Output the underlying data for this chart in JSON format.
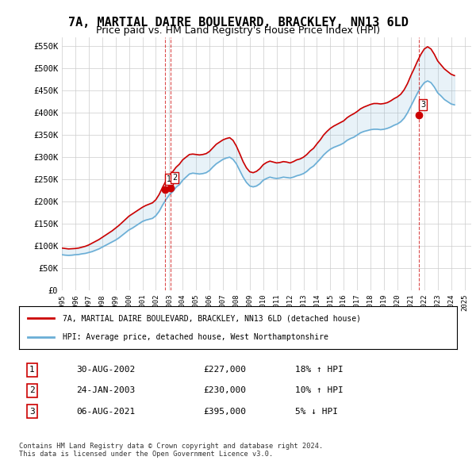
{
  "title": "7A, MARTIAL DAIRE BOULEVARD, BRACKLEY, NN13 6LD",
  "subtitle": "Price paid vs. HM Land Registry's House Price Index (HPI)",
  "title_fontsize": 11,
  "subtitle_fontsize": 9,
  "ylim": [
    0,
    570000
  ],
  "yticks": [
    0,
    50000,
    100000,
    150000,
    200000,
    250000,
    300000,
    350000,
    400000,
    450000,
    500000,
    550000
  ],
  "ytick_labels": [
    "£0",
    "£50K",
    "£100K",
    "£150K",
    "£200K",
    "£250K",
    "£300K",
    "£350K",
    "£400K",
    "£450K",
    "£500K",
    "£550K"
  ],
  "xtick_years": [
    "1995",
    "1996",
    "1997",
    "1998",
    "1999",
    "2000",
    "2001",
    "2002",
    "2003",
    "2004",
    "2005",
    "2006",
    "2007",
    "2008",
    "2009",
    "2010",
    "2011",
    "2012",
    "2013",
    "2014",
    "2015",
    "2016",
    "2017",
    "2018",
    "2019",
    "2020",
    "2021",
    "2022",
    "2023",
    "2024",
    "2025"
  ],
  "hpi_line_color": "#6aaed6",
  "price_line_color": "#cc0000",
  "marker_color": "#cc0000",
  "vline_color": "#cc0000",
  "grid_color": "#cccccc",
  "background_color": "#ffffff",
  "legend_box_color": "#000000",
  "purchase_markers": [
    {
      "label": "1",
      "year": 2002.66,
      "price": 227000,
      "vline_style": "dashed"
    },
    {
      "label": "2",
      "year": 2003.07,
      "price": 230000,
      "vline_style": "dashed"
    },
    {
      "label": "3",
      "year": 2021.59,
      "price": 395000,
      "vline_style": "dashed"
    }
  ],
  "legend_entries": [
    {
      "color": "#cc0000",
      "label": "7A, MARTIAL DAIRE BOULEVARD, BRACKLEY, NN13 6LD (detached house)"
    },
    {
      "color": "#6aaed6",
      "label": "HPI: Average price, detached house, West Northamptonshire"
    }
  ],
  "table_rows": [
    {
      "num": "1",
      "date": "30-AUG-2002",
      "price": "£227,000",
      "hpi": "18% ↑ HPI"
    },
    {
      "num": "2",
      "date": "24-JAN-2003",
      "price": "£230,000",
      "hpi": "10% ↑ HPI"
    },
    {
      "num": "3",
      "date": "06-AUG-2021",
      "price": "£395,000",
      "hpi": "5% ↓ HPI"
    }
  ],
  "footnote": "Contains HM Land Registry data © Crown copyright and database right 2024.\nThis data is licensed under the Open Government Licence v3.0.",
  "hpi_data_x": [
    1995.0,
    1995.25,
    1995.5,
    1995.75,
    1996.0,
    1996.25,
    1996.5,
    1996.75,
    1997.0,
    1997.25,
    1997.5,
    1997.75,
    1998.0,
    1998.25,
    1998.5,
    1998.75,
    1999.0,
    1999.25,
    1999.5,
    1999.75,
    2000.0,
    2000.25,
    2000.5,
    2000.75,
    2001.0,
    2001.25,
    2001.5,
    2001.75,
    2002.0,
    2002.25,
    2002.5,
    2002.75,
    2003.0,
    2003.25,
    2003.5,
    2003.75,
    2004.0,
    2004.25,
    2004.5,
    2004.75,
    2005.0,
    2005.25,
    2005.5,
    2005.75,
    2006.0,
    2006.25,
    2006.5,
    2006.75,
    2007.0,
    2007.25,
    2007.5,
    2007.75,
    2008.0,
    2008.25,
    2008.5,
    2008.75,
    2009.0,
    2009.25,
    2009.5,
    2009.75,
    2010.0,
    2010.25,
    2010.5,
    2010.75,
    2011.0,
    2011.25,
    2011.5,
    2011.75,
    2012.0,
    2012.25,
    2012.5,
    2012.75,
    2013.0,
    2013.25,
    2013.5,
    2013.75,
    2014.0,
    2014.25,
    2014.5,
    2014.75,
    2015.0,
    2015.25,
    2015.5,
    2015.75,
    2016.0,
    2016.25,
    2016.5,
    2016.75,
    2017.0,
    2017.25,
    2017.5,
    2017.75,
    2018.0,
    2018.25,
    2018.5,
    2018.75,
    2019.0,
    2019.25,
    2019.5,
    2019.75,
    2020.0,
    2020.25,
    2020.5,
    2020.75,
    2021.0,
    2021.25,
    2021.5,
    2021.75,
    2022.0,
    2022.25,
    2022.5,
    2022.75,
    2023.0,
    2023.25,
    2023.5,
    2023.75,
    2024.0,
    2024.25
  ],
  "hpi_data_y": [
    80000,
    79000,
    78500,
    79000,
    80000,
    80500,
    82000,
    83000,
    85000,
    87000,
    90000,
    93000,
    97000,
    101000,
    105000,
    109000,
    113000,
    118000,
    124000,
    130000,
    136000,
    140000,
    145000,
    150000,
    155000,
    158000,
    160000,
    162000,
    168000,
    178000,
    192000,
    204000,
    215000,
    222000,
    232000,
    238000,
    248000,
    255000,
    262000,
    264000,
    263000,
    262000,
    263000,
    265000,
    270000,
    278000,
    285000,
    290000,
    295000,
    298000,
    300000,
    295000,
    285000,
    270000,
    255000,
    243000,
    235000,
    233000,
    235000,
    240000,
    248000,
    252000,
    255000,
    253000,
    252000,
    253000,
    255000,
    254000,
    253000,
    255000,
    258000,
    260000,
    263000,
    268000,
    275000,
    280000,
    288000,
    296000,
    305000,
    312000,
    318000,
    322000,
    325000,
    328000,
    332000,
    338000,
    342000,
    345000,
    350000,
    355000,
    358000,
    360000,
    362000,
    363000,
    363000,
    362000,
    363000,
    365000,
    368000,
    372000,
    375000,
    380000,
    388000,
    400000,
    415000,
    430000,
    445000,
    458000,
    468000,
    472000,
    468000,
    458000,
    445000,
    438000,
    430000,
    425000,
    420000,
    418000
  ],
  "price_data_x": [
    1995.0,
    1995.25,
    1995.5,
    1995.75,
    1996.0,
    1996.25,
    1996.5,
    1996.75,
    1997.0,
    1997.25,
    1997.5,
    1997.75,
    1998.0,
    1998.25,
    1998.5,
    1998.75,
    1999.0,
    1999.25,
    1999.5,
    1999.75,
    2000.0,
    2000.25,
    2000.5,
    2000.75,
    2001.0,
    2001.25,
    2001.5,
    2001.75,
    2002.0,
    2002.25,
    2002.5,
    2002.75,
    2003.0,
    2003.25,
    2003.5,
    2003.75,
    2004.0,
    2004.25,
    2004.5,
    2004.75,
    2005.0,
    2005.25,
    2005.5,
    2005.75,
    2006.0,
    2006.25,
    2006.5,
    2006.75,
    2007.0,
    2007.25,
    2007.5,
    2007.75,
    2008.0,
    2008.25,
    2008.5,
    2008.75,
    2009.0,
    2009.25,
    2009.5,
    2009.75,
    2010.0,
    2010.25,
    2010.5,
    2010.75,
    2011.0,
    2011.25,
    2011.5,
    2011.75,
    2012.0,
    2012.25,
    2012.5,
    2012.75,
    2013.0,
    2013.25,
    2013.5,
    2013.75,
    2014.0,
    2014.25,
    2014.5,
    2014.75,
    2015.0,
    2015.25,
    2015.5,
    2015.75,
    2016.0,
    2016.25,
    2016.5,
    2016.75,
    2017.0,
    2017.25,
    2017.5,
    2017.75,
    2018.0,
    2018.25,
    2018.5,
    2018.75,
    2019.0,
    2019.25,
    2019.5,
    2019.75,
    2020.0,
    2020.25,
    2020.5,
    2020.75,
    2021.0,
    2021.25,
    2021.5,
    2021.75,
    2022.0,
    2022.25,
    2022.5,
    2022.75,
    2023.0,
    2023.25,
    2023.5,
    2023.75,
    2024.0,
    2024.25
  ],
  "price_data_y": [
    95000,
    94000,
    93000,
    93500,
    94000,
    95000,
    97000,
    99000,
    102000,
    106000,
    110000,
    114000,
    119000,
    124000,
    129000,
    134000,
    140000,
    146000,
    153000,
    160000,
    167000,
    172000,
    177000,
    182000,
    187000,
    191000,
    194000,
    197000,
    204000,
    216000,
    232000,
    246000,
    259000,
    267000,
    277000,
    284000,
    294000,
    300000,
    306000,
    307000,
    306000,
    305000,
    306000,
    308000,
    313000,
    321000,
    329000,
    334000,
    339000,
    342000,
    344000,
    338000,
    325000,
    308000,
    290000,
    276000,
    267000,
    265000,
    268000,
    274000,
    283000,
    288000,
    291000,
    289000,
    287000,
    288000,
    290000,
    289000,
    287000,
    290000,
    294000,
    296000,
    300000,
    306000,
    314000,
    320000,
    330000,
    339000,
    350000,
    358000,
    365000,
    370000,
    374000,
    378000,
    382000,
    389000,
    394000,
    398000,
    403000,
    409000,
    413000,
    416000,
    419000,
    421000,
    421000,
    420000,
    421000,
    423000,
    427000,
    432000,
    436000,
    442000,
    452000,
    466000,
    484000,
    500000,
    517000,
    532000,
    544000,
    549000,
    544000,
    532000,
    517000,
    508000,
    499000,
    493000,
    487000,
    484000
  ]
}
